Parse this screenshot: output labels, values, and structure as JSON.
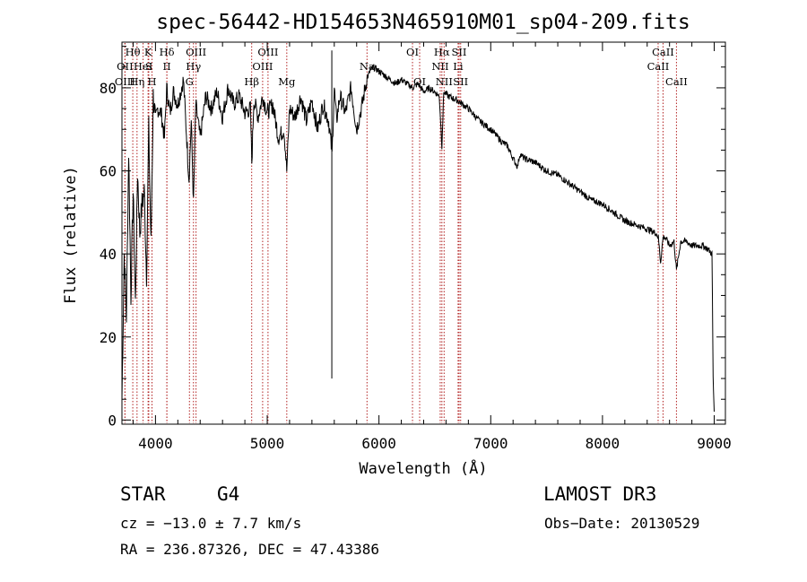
{
  "chart_data": {
    "type": "line",
    "title": "spec-56442-HD154653N465910M01_sp04-209.fits",
    "xlabel": "Wavelength (Å)",
    "ylabel": "Flux (relative)",
    "xlim": [
      3700,
      9100
    ],
    "ylim": [
      -1,
      91
    ],
    "xticks": [
      4000,
      5000,
      6000,
      7000,
      8000,
      9000
    ],
    "yticks": [
      0,
      20,
      40,
      60,
      80
    ],
    "grid": false,
    "series": [
      {
        "name": "spectrum",
        "x": [
          3700,
          3720,
          3740,
          3760,
          3780,
          3800,
          3820,
          3840,
          3860,
          3880,
          3900,
          3920,
          3940,
          3960,
          3980,
          4000,
          4020,
          4050,
          4080,
          4100,
          4130,
          4160,
          4200,
          4250,
          4300,
          4320,
          4340,
          4360,
          4400,
          4450,
          4500,
          4550,
          4600,
          4650,
          4700,
          4750,
          4800,
          4850,
          4862,
          4880,
          4920,
          4960,
          5000,
          5050,
          5100,
          5150,
          5175,
          5200,
          5250,
          5300,
          5350,
          5400,
          5450,
          5500,
          5550,
          5580,
          5600,
          5620,
          5650,
          5700,
          5750,
          5800,
          5850,
          5890,
          5920,
          5950,
          6000,
          6050,
          6100,
          6150,
          6200,
          6250,
          6300,
          6350,
          6400,
          6450,
          6500,
          6540,
          6563,
          6580,
          6620,
          6700,
          6800,
          6900,
          7000,
          7100,
          7150,
          7200,
          7240,
          7260,
          7300,
          7400,
          7500,
          7600,
          7700,
          7800,
          7900,
          8000,
          8100,
          8200,
          8300,
          8400,
          8480,
          8500,
          8520,
          8542,
          8560,
          8600,
          8640,
          8662,
          8700,
          8750,
          8800,
          8850,
          8900,
          8950,
          8980,
          8990,
          9000
        ],
        "values": [
          5,
          40,
          25,
          65,
          30,
          55,
          28,
          60,
          45,
          52,
          55,
          35,
          70,
          42,
          78,
          72,
          75,
          74,
          68,
          80,
          74,
          79,
          76,
          82,
          58,
          72,
          52,
          76,
          68,
          78,
          75,
          79,
          73,
          80,
          76,
          78,
          74,
          75,
          62,
          77,
          73,
          78,
          74,
          76,
          68,
          70,
          60,
          75,
          73,
          78,
          72,
          77,
          70,
          76,
          72,
          64,
          80,
          72,
          78,
          74,
          80,
          70,
          76,
          82,
          84,
          85,
          84,
          83,
          82,
          81,
          82,
          81,
          80,
          81,
          79,
          80,
          79,
          78,
          66,
          79,
          78,
          77,
          75,
          72,
          70,
          67,
          66,
          63,
          61,
          64,
          63,
          62,
          60,
          59,
          57,
          55,
          53,
          52,
          50,
          48,
          47,
          46,
          45,
          44,
          38,
          44,
          44,
          42,
          43,
          36,
          43,
          43,
          42,
          42,
          42,
          41,
          40,
          10,
          2
        ]
      }
    ],
    "spectral_lines": [
      {
        "label": "Hθ",
        "wave": 3797,
        "row": 1
      },
      {
        "label": "OII",
        "wave": 3727,
        "row": 2
      },
      {
        "label": "OIII",
        "wave": 3727,
        "row": 3
      },
      {
        "label": "Hη",
        "wave": 3835,
        "row": 3
      },
      {
        "label": "HeI",
        "wave": 3889,
        "row": 2
      },
      {
        "label": "K",
        "wave": 3934,
        "row": 1
      },
      {
        "label": "S",
        "wave": 3940,
        "row": 2
      },
      {
        "label": "H",
        "wave": 3969,
        "row": 3
      },
      {
        "label": "Hδ",
        "wave": 4102,
        "row": 1
      },
      {
        "label": "II",
        "wave": 4102,
        "row": 2
      },
      {
        "label": "OIII",
        "wave": 4363,
        "row": 1
      },
      {
        "label": "Hγ",
        "wave": 4340,
        "row": 2
      },
      {
        "label": "G",
        "wave": 4304,
        "row": 3
      },
      {
        "label": "Hβ",
        "wave": 4861,
        "row": 3
      },
      {
        "label": "OIII",
        "wave": 5007,
        "row": 1
      },
      {
        "label": "OIII",
        "wave": 4959,
        "row": 2
      },
      {
        "label": "Mg",
        "wave": 5175,
        "row": 3
      },
      {
        "label": "Na",
        "wave": 5893,
        "row": 2
      },
      {
        "label": "OI",
        "wave": 6300,
        "row": 1
      },
      {
        "label": "OI",
        "wave": 6364,
        "row": 3
      },
      {
        "label": "Hα",
        "wave": 6563,
        "row": 1
      },
      {
        "label": "NII",
        "wave": 6548,
        "row": 2
      },
      {
        "label": "NII",
        "wave": 6583,
        "row": 3
      },
      {
        "label": "SII",
        "wave": 6717,
        "row": 1
      },
      {
        "label": "Li",
        "wave": 6708,
        "row": 2
      },
      {
        "label": "SII",
        "wave": 6731,
        "row": 3
      },
      {
        "label": "CaII",
        "wave": 8542,
        "row": 1
      },
      {
        "label": "CaII",
        "wave": 8498,
        "row": 2
      },
      {
        "label": "CaII",
        "wave": 8662,
        "row": 3
      }
    ]
  },
  "info": {
    "object_class": "STAR",
    "subclass": "G4",
    "survey": "LAMOST DR3",
    "redshift": "cz = −13.0 ± 7.7 km/s",
    "obs_date": "Obs−Date: 20130529",
    "coords": "RA = 236.87326, DEC =  47.43386"
  },
  "colors": {
    "spectrum": "#000000",
    "line_markers": "#b22222",
    "axes": "#000000"
  }
}
